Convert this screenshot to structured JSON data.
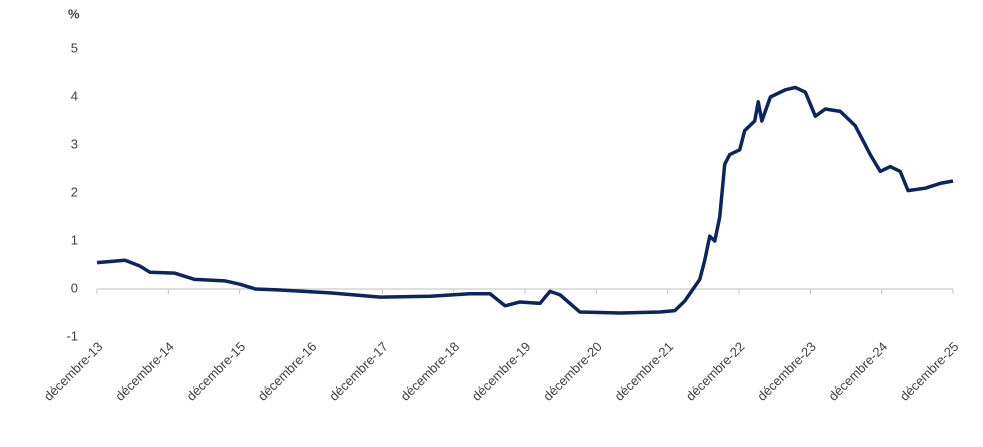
{
  "chart_data": {
    "type": "line",
    "y_label": "%",
    "x": [
      2013.92,
      2014.31,
      2014.52,
      2014.66,
      2015.01,
      2015.29,
      2015.71,
      2015.92,
      2016.14,
      2016.49,
      2017.19,
      2017.89,
      2018.59,
      2019.15,
      2019.43,
      2019.64,
      2019.85,
      2020.13,
      2020.27,
      2020.41,
      2020.69,
      2021.25,
      2021.81,
      2022.02,
      2022.16,
      2022.37,
      2022.44,
      2022.51,
      2022.58,
      2022.65,
      2022.72,
      2022.79,
      2022.93,
      2023.0,
      2023.14,
      2023.19,
      2023.24,
      2023.36,
      2023.57,
      2023.71,
      2023.85,
      2023.99,
      2024.13,
      2024.34,
      2024.55,
      2024.76,
      2024.9,
      2025.04,
      2025.18,
      2025.29,
      2025.53,
      2025.74,
      2025.92
    ],
    "series": [
      {
        "color": "#0c2461",
        "values": [
          0.55,
          0.6,
          0.48,
          0.35,
          0.33,
          0.2,
          0.17,
          0.1,
          0.0,
          -0.02,
          -0.08,
          -0.17,
          -0.15,
          -0.1,
          -0.1,
          -0.35,
          -0.27,
          -0.3,
          -0.05,
          -0.12,
          -0.48,
          -0.5,
          -0.48,
          -0.45,
          -0.25,
          0.2,
          0.6,
          1.1,
          1.0,
          1.5,
          2.6,
          2.8,
          2.9,
          3.3,
          3.5,
          3.9,
          3.5,
          4.0,
          4.15,
          4.2,
          4.1,
          3.6,
          3.75,
          3.7,
          3.4,
          2.8,
          2.45,
          2.55,
          2.45,
          2.05,
          2.1,
          2.2,
          2.25
        ]
      }
    ],
    "xlim": [
      2013.92,
      2025.92
    ],
    "xticks": [
      {
        "value": 2013.92,
        "label": "décembre-13"
      },
      {
        "value": 2014.92,
        "label": "décembre-14"
      },
      {
        "value": 2015.92,
        "label": "décembre-15"
      },
      {
        "value": 2016.92,
        "label": "décembre-16"
      },
      {
        "value": 2017.92,
        "label": "décembre-17"
      },
      {
        "value": 2018.92,
        "label": "décembre-18"
      },
      {
        "value": 2019.92,
        "label": "décembre-19"
      },
      {
        "value": 2020.92,
        "label": "décembre-20"
      },
      {
        "value": 2021.92,
        "label": "décembre-21"
      },
      {
        "value": 2022.92,
        "label": "décembre-22"
      },
      {
        "value": 2023.92,
        "label": "décembre-23"
      },
      {
        "value": 2024.92,
        "label": "décembre-24"
      },
      {
        "value": 2025.92,
        "label": "décembre-25"
      }
    ],
    "ylim": [
      -1,
      5
    ],
    "yticks": [
      -1,
      0,
      1,
      2,
      3,
      4,
      5
    ],
    "grid": false
  }
}
